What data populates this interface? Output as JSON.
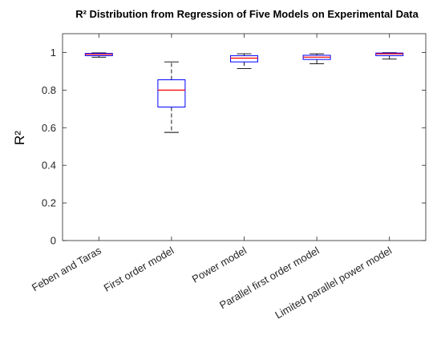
{
  "chart_data": {
    "type": "box",
    "title": "R² Distribution from Regression of Five Models on Experimental Data",
    "ylabel": "R²",
    "xlabel": "",
    "ylim": [
      0,
      1.1
    ],
    "yticks": [
      0,
      0.2,
      0.4,
      0.6,
      0.8,
      1
    ],
    "yticklabels": [
      "0",
      "0.2",
      "0.4",
      "0.6",
      "0.8",
      "1"
    ],
    "categories": [
      "Feben and Taras",
      "First order model",
      "Power model",
      "Parallel first order model",
      "Limited parallel power model"
    ],
    "boxes": [
      {
        "whisker_low": 0.975,
        "q1": 0.983,
        "median": 0.99,
        "q3": 0.995,
        "whisker_high": 0.998
      },
      {
        "whisker_low": 0.575,
        "q1": 0.71,
        "median": 0.8,
        "q3": 0.855,
        "whisker_high": 0.95
      },
      {
        "whisker_low": 0.915,
        "q1": 0.95,
        "median": 0.97,
        "q3": 0.983,
        "whisker_high": 0.993
      },
      {
        "whisker_low": 0.94,
        "q1": 0.963,
        "median": 0.975,
        "q3": 0.985,
        "whisker_high": 0.993
      },
      {
        "whisker_low": 0.965,
        "q1": 0.983,
        "median": 0.993,
        "q3": 0.997,
        "whisker_high": 0.999
      }
    ],
    "grid": false,
    "colors": {
      "box": "#0000ff",
      "median": "#ff0000",
      "whisker": "#000000"
    }
  }
}
